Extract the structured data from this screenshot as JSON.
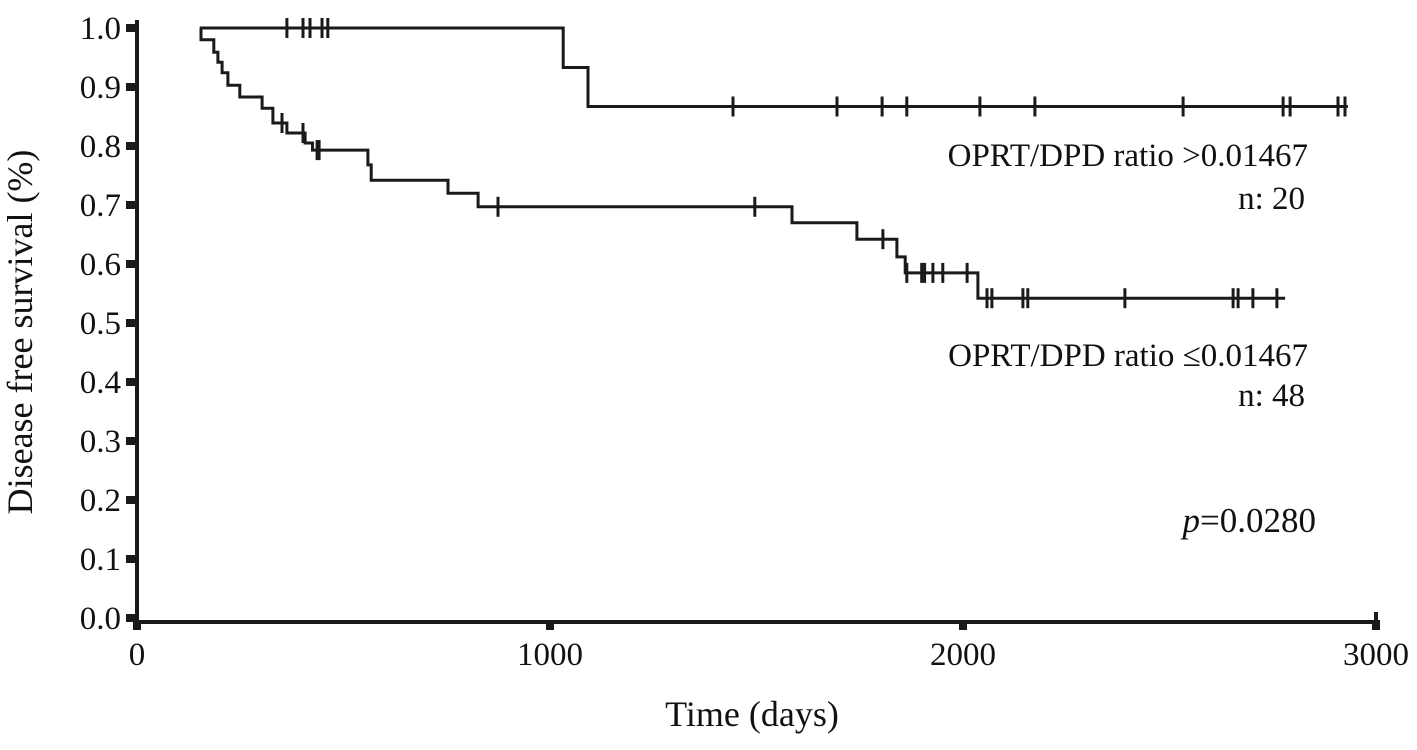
{
  "chart_data": {
    "type": "line",
    "subtype": "kaplan_meier_step",
    "title": "",
    "xlabel": "Time (days)",
    "ylabel": "Disease free survival (%)",
    "xlim": [
      0,
      3000
    ],
    "ylim": [
      0.0,
      1.0
    ],
    "grid": false,
    "legend_position": "inline-annotations-right",
    "x_tick_values": [
      0,
      1000,
      2000,
      3000
    ],
    "x_tick_labels": [
      "0",
      "1000",
      "2000",
      "3000"
    ],
    "y_tick_values": [
      1.0,
      0.9,
      0.8,
      0.7,
      0.6,
      0.5,
      0.4,
      0.3,
      0.2,
      0.1,
      0.0
    ],
    "y_tick_labels": [
      "1.0",
      "0.9",
      "0.8",
      "0.7",
      "0.6",
      "0.5",
      "0.4",
      "0.3",
      "0.2",
      "0.1",
      "0.0"
    ],
    "line_color": "#1a1a1a",
    "annotations": {
      "p_label": {
        "italic": "p",
        "rest": "=0.0280"
      }
    },
    "series": [
      {
        "name": "OPRT/DPD ratio >0.01467",
        "n": 20,
        "n_label": "n: 20",
        "points": [
          [
            152,
            1.0
          ],
          [
            1032,
            0.933
          ],
          [
            1092,
            0.867
          ]
        ],
        "end_day": 2932,
        "censors": [
          [
            363,
            1.0
          ],
          [
            402,
            1.0
          ],
          [
            419,
            1.0
          ],
          [
            448,
            1.0
          ],
          [
            462,
            1.0
          ],
          [
            1443,
            0.867
          ],
          [
            1695,
            0.867
          ],
          [
            1804,
            0.867
          ],
          [
            1864,
            0.867
          ],
          [
            2041,
            0.867
          ],
          [
            2174,
            0.867
          ],
          [
            2533,
            0.867
          ],
          [
            2775,
            0.867
          ],
          [
            2792,
            0.867
          ],
          [
            2908,
            0.867
          ],
          [
            2925,
            0.867
          ]
        ]
      },
      {
        "name": "OPRT/DPD ratio ≤0.01467",
        "n": 48,
        "n_label": "n: 48",
        "points": [
          [
            152,
            1.0
          ],
          [
            155,
            0.98
          ],
          [
            186,
            0.959
          ],
          [
            196,
            0.942
          ],
          [
            206,
            0.924
          ],
          [
            220,
            0.903
          ],
          [
            249,
            0.883
          ],
          [
            303,
            0.864
          ],
          [
            329,
            0.839
          ],
          [
            363,
            0.822
          ],
          [
            407,
            0.805
          ],
          [
            425,
            0.793
          ],
          [
            559,
            0.768
          ],
          [
            567,
            0.742
          ],
          [
            753,
            0.72
          ],
          [
            826,
            0.697
          ],
          [
            1586,
            0.67
          ],
          [
            1743,
            0.642
          ],
          [
            1840,
            0.612
          ],
          [
            1860,
            0.585
          ],
          [
            2036,
            0.542
          ]
        ],
        "end_day": 2780,
        "censors": [
          [
            351,
            0.839
          ],
          [
            402,
            0.822
          ],
          [
            436,
            0.793
          ],
          [
            441,
            0.793
          ],
          [
            874,
            0.697
          ],
          [
            1496,
            0.697
          ],
          [
            1806,
            0.642
          ],
          [
            1864,
            0.585
          ],
          [
            1900,
            0.585
          ],
          [
            1907,
            0.585
          ],
          [
            1927,
            0.585
          ],
          [
            1951,
            0.585
          ],
          [
            2010,
            0.585
          ],
          [
            2058,
            0.542
          ],
          [
            2070,
            0.542
          ],
          [
            2145,
            0.542
          ],
          [
            2157,
            0.542
          ],
          [
            2392,
            0.542
          ],
          [
            2654,
            0.542
          ],
          [
            2666,
            0.542
          ],
          [
            2702,
            0.542
          ],
          [
            2760,
            0.542
          ]
        ]
      }
    ]
  }
}
